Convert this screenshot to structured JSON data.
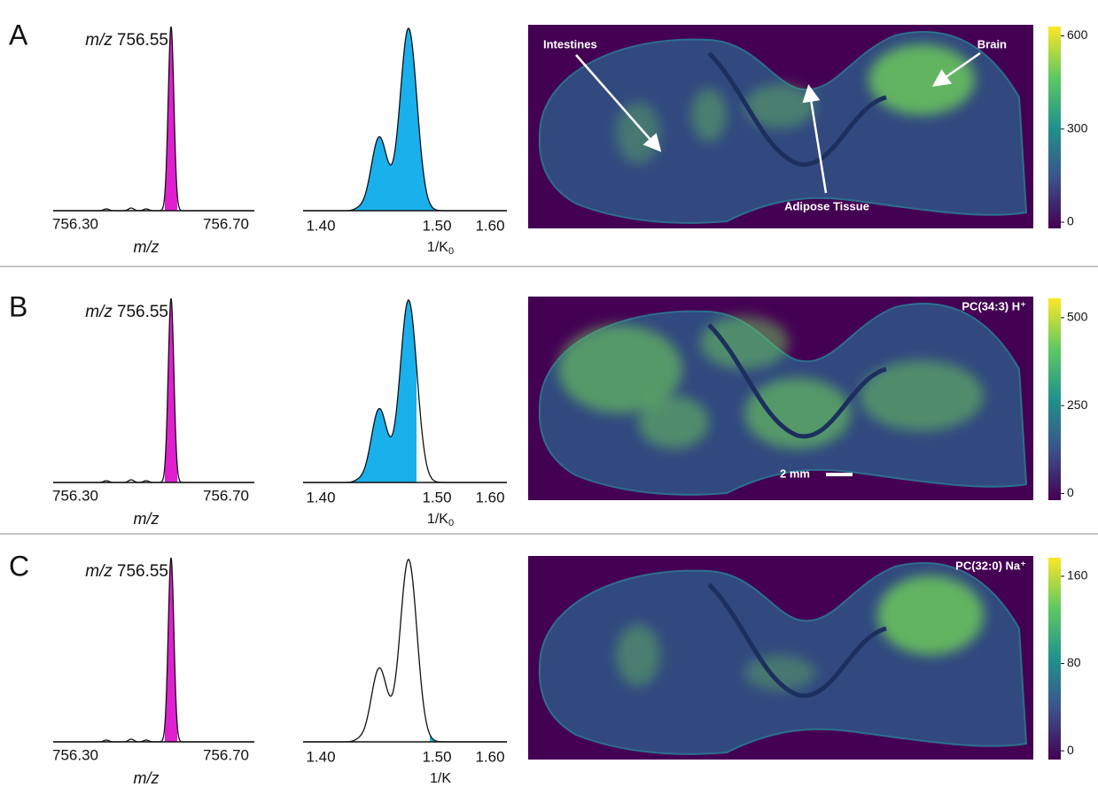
{
  "panels": [
    {
      "letter": "A",
      "mz_title": {
        "italic": "m/z",
        "text": "756.55"
      },
      "mz_ticks": [
        "756.30",
        "756.70"
      ],
      "mz_axis_label": "m/z",
      "mobility_ticks": [
        "1.40",
        "1.50",
        "1.60"
      ],
      "mobility_axis_label": {
        "text": "1/K",
        "subscript": "0"
      },
      "annotations": [
        "Intestines",
        "Brain",
        "Adipose Tissue"
      ],
      "colorbar": {
        "range": [
          -20,
          630
        ],
        "ticks": [
          600,
          300,
          0
        ]
      }
    },
    {
      "letter": "B",
      "mz_title": {
        "italic": "m/z",
        "text": "756.55"
      },
      "mz_ticks": [
        "756.30",
        "756.70"
      ],
      "mz_axis_label": "m/z",
      "mobility_ticks": [
        "1.40",
        "1.50",
        "1.60"
      ],
      "mobility_axis_label": {
        "text": "1/K",
        "subscript": "0"
      },
      "annotations": [
        "PC(34:3) H⁺",
        "2 mm"
      ],
      "colorbar": {
        "range": [
          -19,
          555
        ],
        "ticks": [
          500,
          250,
          0
        ]
      }
    },
    {
      "letter": "C",
      "mz_title": {
        "italic": "m/z",
        "text": "756.55"
      },
      "mz_ticks": [
        "756.30",
        "756.70"
      ],
      "mz_axis_label": "m/z",
      "mobility_ticks": [
        "1.40",
        "1.50",
        "1.60"
      ],
      "mobility_axis_label": {
        "text": "1/K"
      },
      "annotations": [
        "PC(32:0) Na⁺"
      ],
      "colorbar": {
        "range": [
          -8,
          177
        ],
        "ticks": [
          160,
          80,
          0
        ]
      }
    }
  ]
}
